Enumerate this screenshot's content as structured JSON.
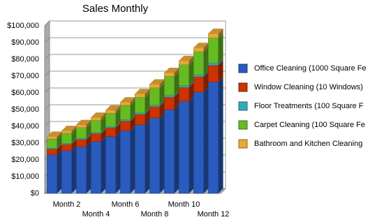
{
  "chart_data": {
    "type": "bar3d-stacked",
    "title": "Sales Monthly",
    "categories": [
      null,
      "Month 2",
      null,
      "Month 4",
      null,
      "Month 6",
      null,
      "Month 8",
      null,
      "Month 10",
      null,
      "Month 12"
    ],
    "series": [
      {
        "name": "Office Cleaning (1000 Square Fe",
        "color": "#2a5cbf",
        "values": [
          23000,
          25500,
          28000,
          31000,
          34000,
          37500,
          41000,
          45000,
          50000,
          55000,
          60500,
          66500
        ]
      },
      {
        "name": "Window Cleaning (10 Windows)",
        "color": "#cc3300",
        "values": [
          3500,
          3800,
          4200,
          4700,
          5200,
          5700,
          6200,
          6800,
          7500,
          8300,
          9100,
          10000
        ]
      },
      {
        "name": "Floor Treatments (100 Square F",
        "color": "#33aabb",
        "values": [
          500,
          550,
          600,
          650,
          700,
          750,
          800,
          900,
          1000,
          1100,
          1200,
          1300
        ]
      },
      {
        "name": "Carpet Cleaning (100 Square Fe",
        "color": "#66bb22",
        "values": [
          5500,
          6000,
          6500,
          7200,
          7900,
          8600,
          9400,
          10300,
          11300,
          12400,
          13700,
          15000
        ]
      },
      {
        "name": "Bathroom and Kitchen Cleaning",
        "color": "#e8a838",
        "values": [
          1500,
          1600,
          1700,
          1800,
          1900,
          2000,
          2100,
          2200,
          2300,
          2400,
          2500,
          2600
        ]
      }
    ],
    "ylim": [
      0,
      100000
    ],
    "yticks": [
      {
        "value": 0,
        "label": "$0"
      },
      {
        "value": 10000,
        "label": "$10,000"
      },
      {
        "value": 20000,
        "label": "$20,000"
      },
      {
        "value": 30000,
        "label": "$30,000"
      },
      {
        "value": 40000,
        "label": "$40,000"
      },
      {
        "value": 50000,
        "label": "$50,000"
      },
      {
        "value": 60000,
        "label": "$60,000"
      },
      {
        "value": 70000,
        "label": "$70,000"
      },
      {
        "value": 80000,
        "label": "$80,000"
      },
      {
        "value": 90000,
        "label": "$90,000"
      },
      {
        "value": 100000,
        "label": "$100,000"
      }
    ],
    "grid": true,
    "legend": "right"
  }
}
